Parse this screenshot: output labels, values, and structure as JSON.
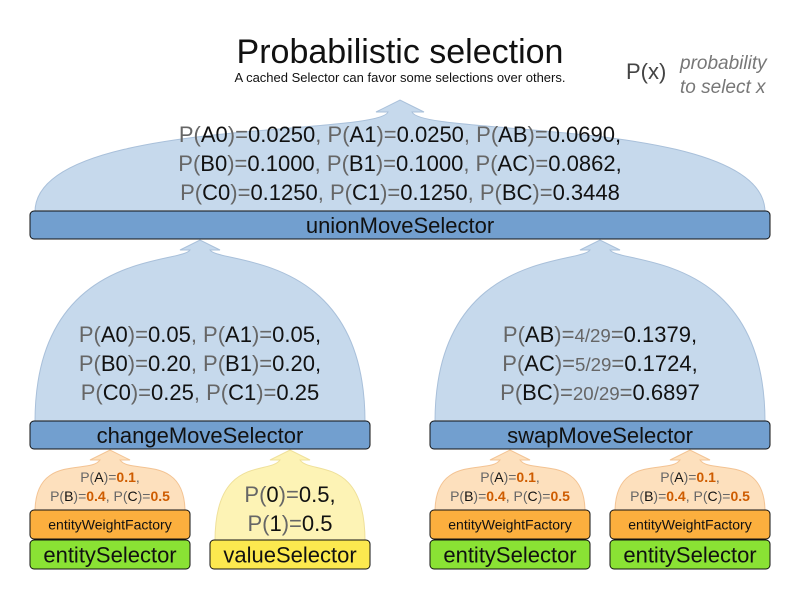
{
  "title": "Probabilistic selection",
  "subtitle": "A cached Selector can favor some selections over others.",
  "legend": {
    "symbol": "P(x)",
    "line1": "probability",
    "line2": "to select x"
  },
  "colors": {
    "blue_box": "#729fcf",
    "blue_dome": "#c6d9ec",
    "orange_box": "#fcaf3e",
    "orange_dome": "#fde0bd",
    "green_box": "#8ae234",
    "yellow_box": "#fce94f",
    "yellow_dome": "#fdf3b5",
    "weight_value": "#ce5c00"
  },
  "union": {
    "label": "unionMoveSelector",
    "lines": [
      [
        {
          "k": "A0",
          "v": "0.0250"
        },
        {
          "k": "A1",
          "v": "0.0250"
        },
        {
          "k": "AB",
          "v": "0.0690"
        }
      ],
      [
        {
          "k": "B0",
          "v": "0.1000"
        },
        {
          "k": "B1",
          "v": "0.1000"
        },
        {
          "k": "AC",
          "v": "0.0862"
        }
      ],
      [
        {
          "k": "C0",
          "v": "0.1250"
        },
        {
          "k": "C1",
          "v": "0.1250"
        },
        {
          "k": "BC",
          "v": "0.3448"
        }
      ]
    ]
  },
  "change": {
    "label": "changeMoveSelector",
    "lines": [
      [
        {
          "k": "A0",
          "v": "0.05"
        },
        {
          "k": "A1",
          "v": "0.05"
        }
      ],
      [
        {
          "k": "B0",
          "v": "0.20"
        },
        {
          "k": "B1",
          "v": "0.20"
        }
      ],
      [
        {
          "k": "C0",
          "v": "0.25"
        },
        {
          "k": "C1",
          "v": "0.25"
        }
      ]
    ]
  },
  "swap": {
    "label": "swapMoveSelector",
    "lines": [
      [
        {
          "k": "AB",
          "f": "4/29",
          "v": "0.1379"
        }
      ],
      [
        {
          "k": "AC",
          "f": "5/29",
          "v": "0.1724"
        }
      ],
      [
        {
          "k": "BC",
          "f": "20/29",
          "v": "0.6897"
        }
      ]
    ]
  },
  "entity_stack": {
    "weight_label": "entityWeightFactory",
    "selector_label": "entitySelector",
    "lines": [
      [
        {
          "k": "A",
          "v": "0.1"
        }
      ],
      [
        {
          "k": "B",
          "v": "0.4"
        },
        {
          "k": "C",
          "v": "0.5"
        }
      ]
    ]
  },
  "value_stack": {
    "selector_label": "valueSelector",
    "lines": [
      [
        {
          "k": "0",
          "v": "0.5"
        }
      ],
      [
        {
          "k": "1",
          "v": "0.5"
        }
      ]
    ]
  }
}
